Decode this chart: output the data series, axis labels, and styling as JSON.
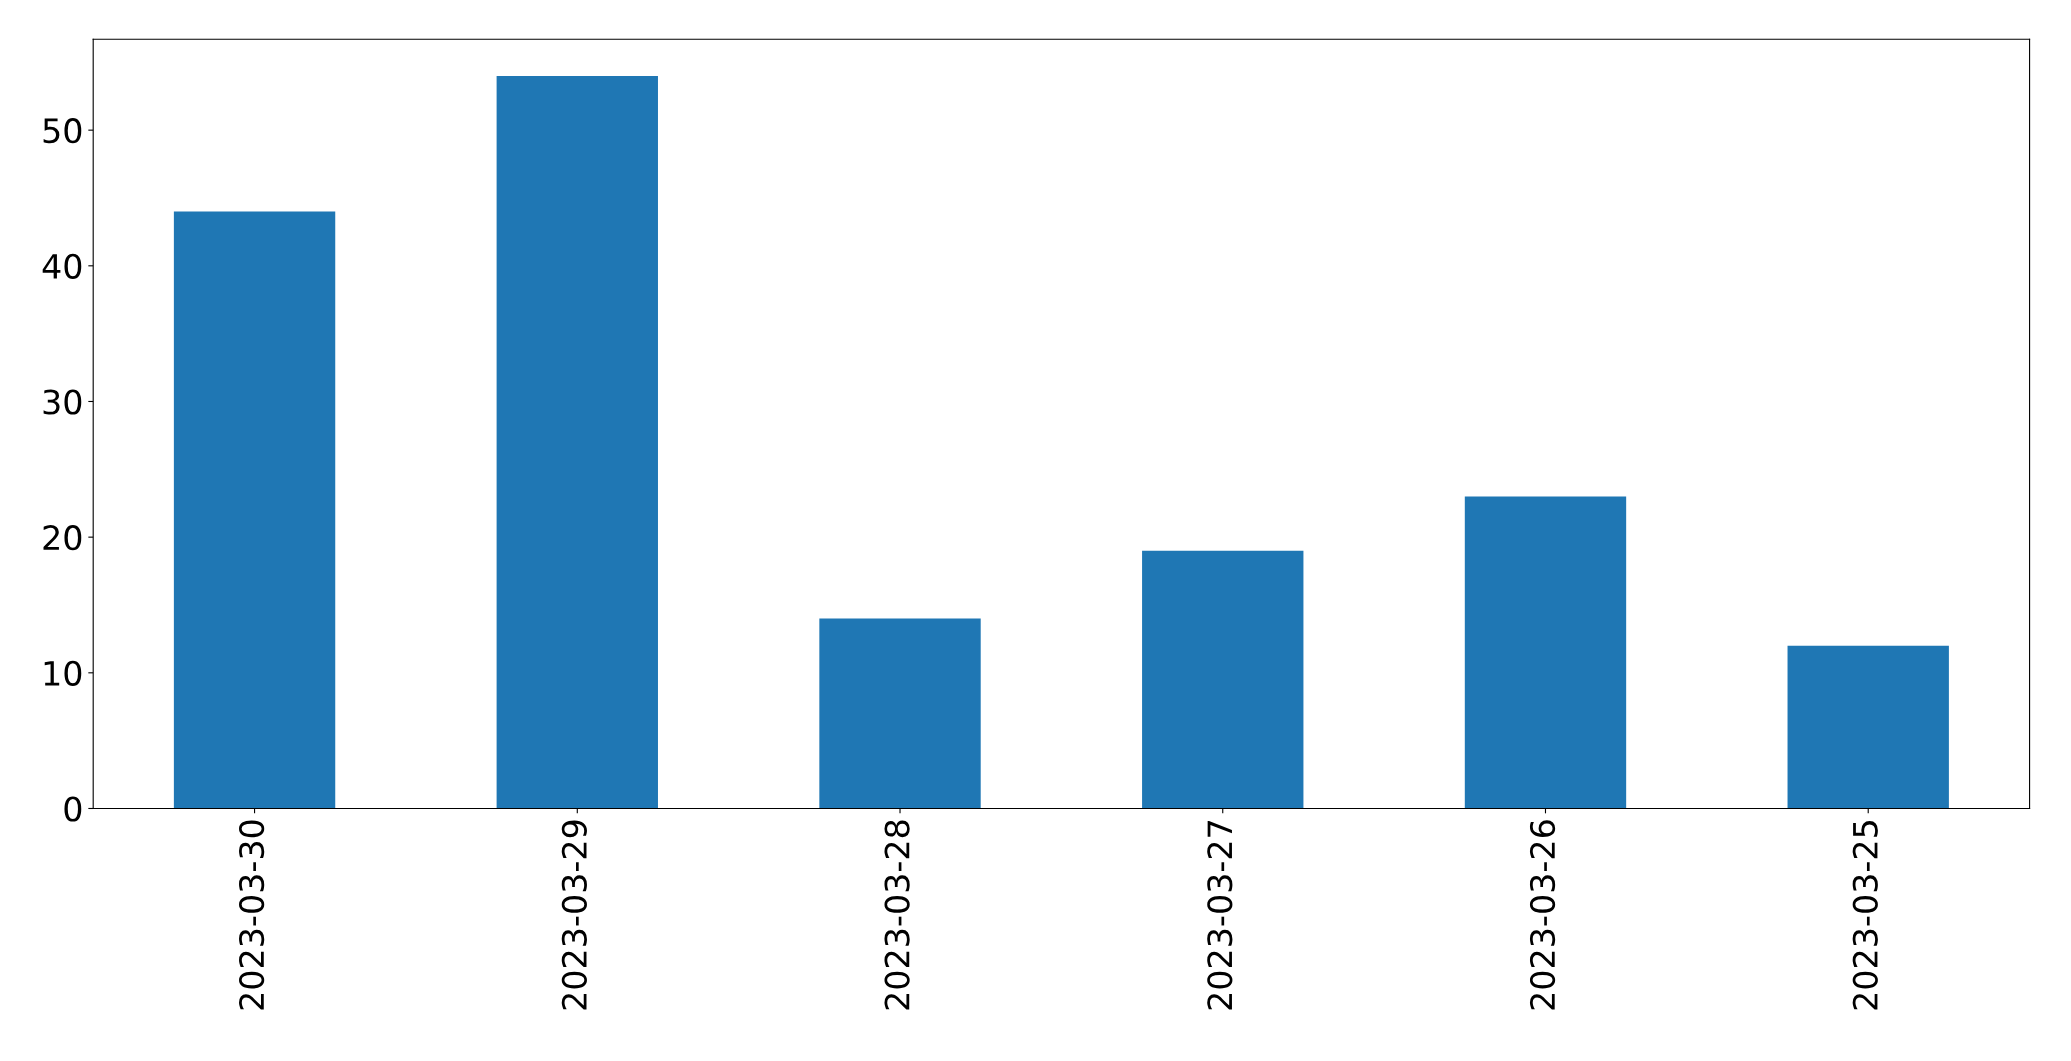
{
  "chart_data": {
    "type": "bar",
    "categories": [
      "2023-03-30",
      "2023-03-29",
      "2023-03-28",
      "2023-03-27",
      "2023-03-26",
      "2023-03-25"
    ],
    "values": [
      44,
      54,
      14,
      19,
      23,
      12
    ],
    "color": "#1f77b4",
    "ylim": [
      0,
      56.7
    ],
    "yticks": [
      0,
      10,
      20,
      30,
      40,
      50
    ],
    "grid": false
  }
}
